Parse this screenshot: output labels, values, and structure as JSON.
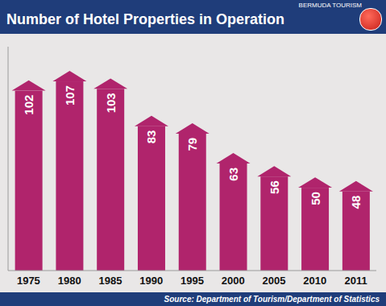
{
  "chart_data": {
    "type": "bar",
    "title": "Number of Hotel Properties in Operation",
    "subtitle": "BERMUDA TOURISM",
    "source": "Source: Department of Tourism/Department of Statistics",
    "categories": [
      "1975",
      "1980",
      "1985",
      "1990",
      "1995",
      "2000",
      "2005",
      "2010",
      "2011"
    ],
    "values": [
      102,
      107,
      103,
      83,
      79,
      63,
      56,
      50,
      48
    ],
    "color": "#b0246c",
    "ylim": [
      0,
      120
    ],
    "grid": false,
    "data_labels": true,
    "tick_labels": "x"
  }
}
